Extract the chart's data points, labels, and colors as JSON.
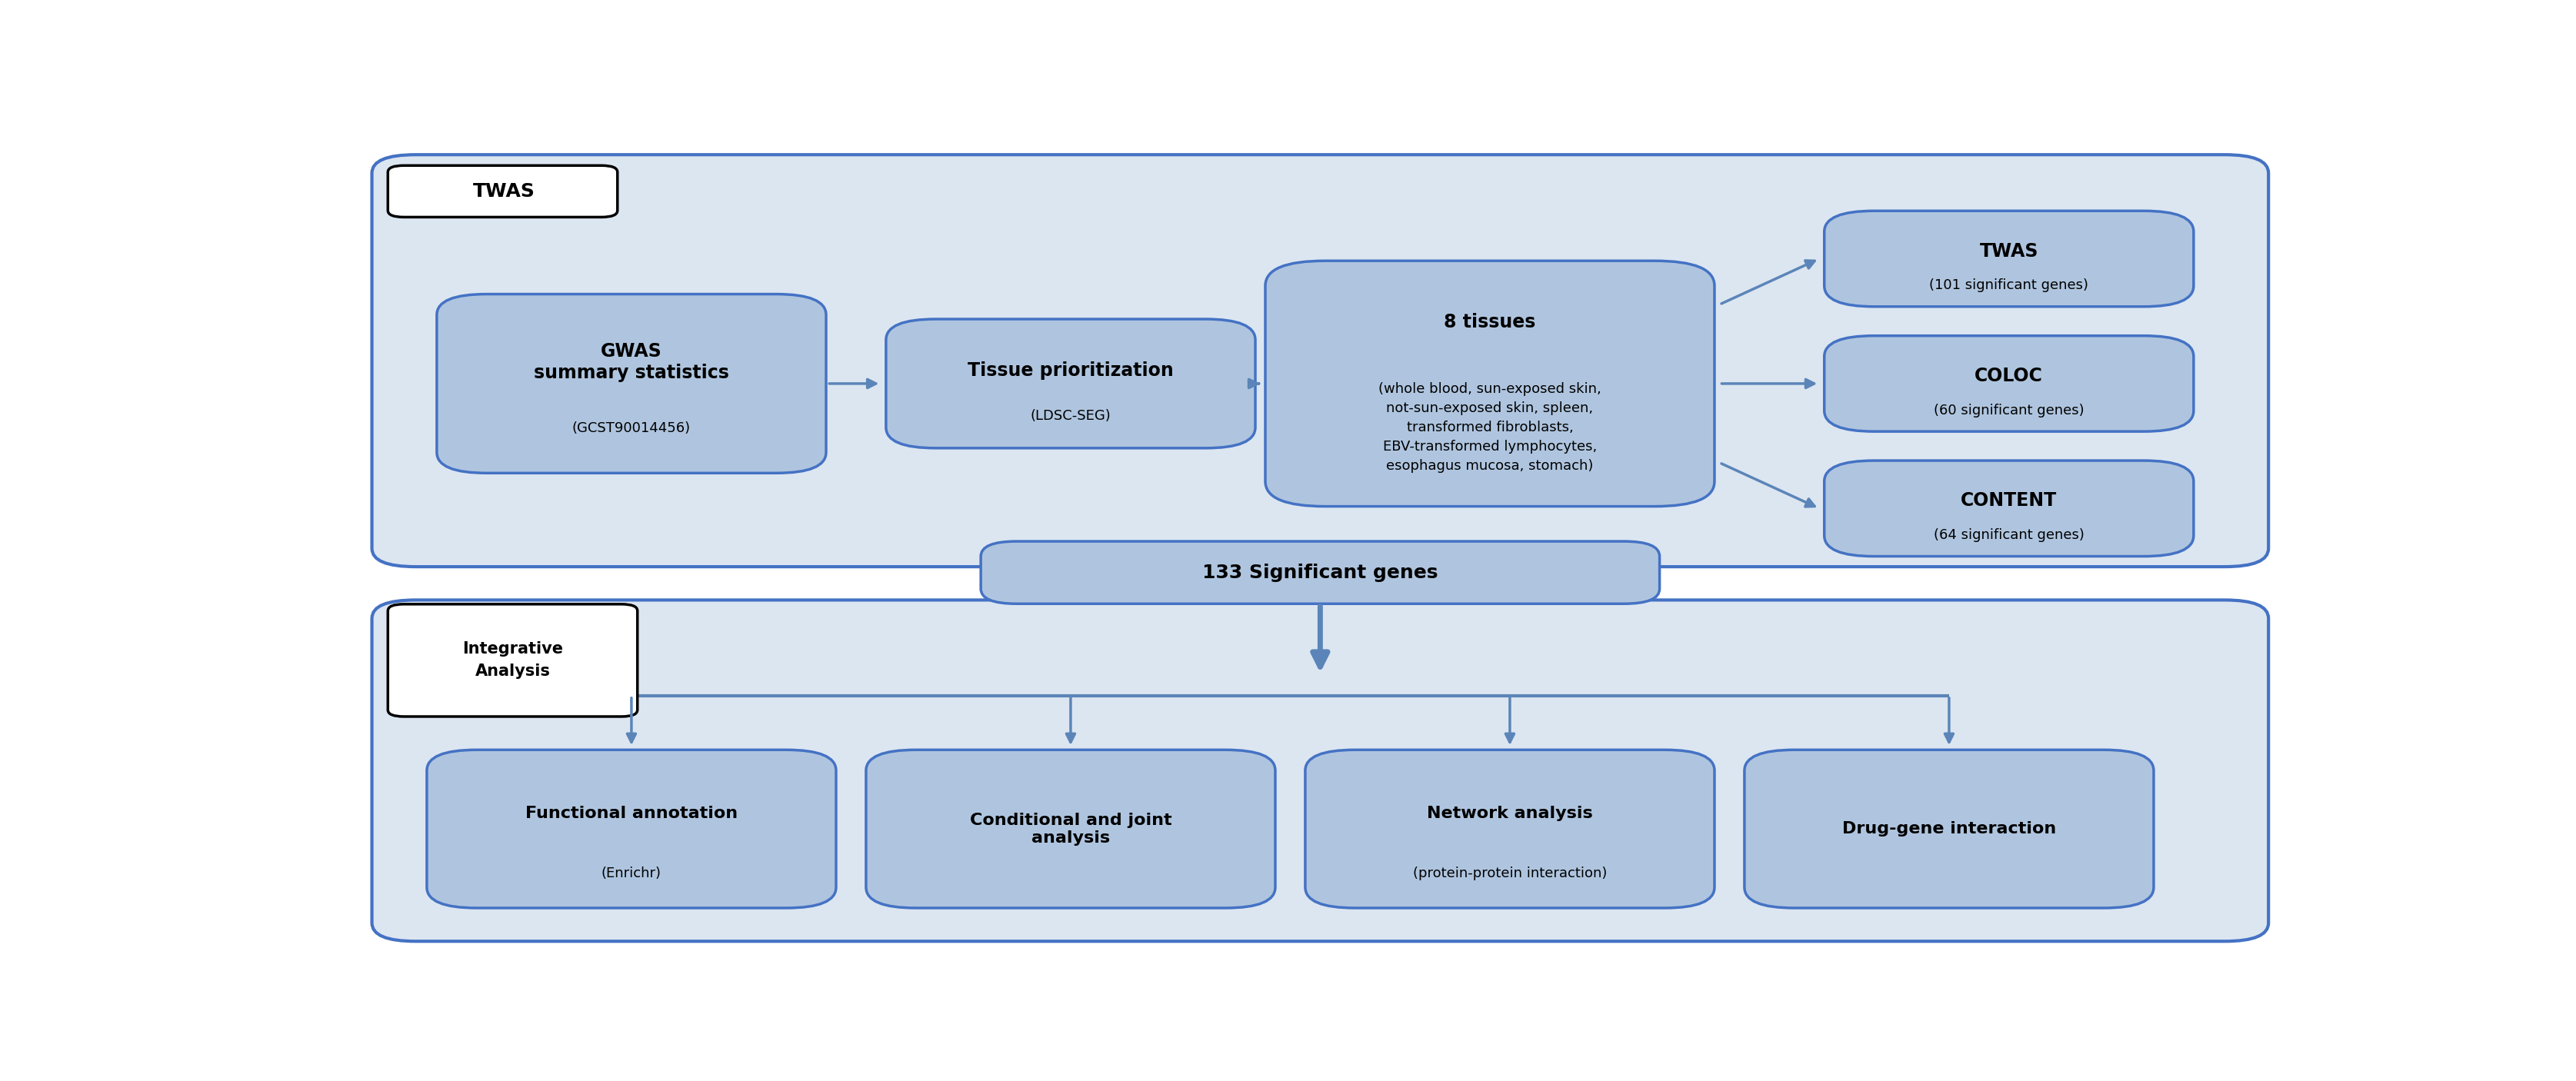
{
  "fig_width": 33.49,
  "fig_height": 14.06,
  "bg_color": "#ffffff",
  "box_fill": "#afc5df",
  "box_edge": "#4472c4",
  "outer_box_fill": "#dce6f1",
  "outer_box_edge": "#4472c4",
  "arrow_color": "#5b85b8",
  "label_box_fill": "#ffffff",
  "label_box_edge": "#000000",
  "twas_label": "TWAS",
  "integrative_label": "Integrative\nAnalysis",
  "gwas_title": "GWAS\nsummary statistics",
  "gwas_sub": "(GCST90014456)",
  "tissue_prio_title": "Tissue prioritization",
  "tissue_prio_sub": "(LDSC-SEG)",
  "tissues_title": "8 tissues",
  "tissues_sub": "(whole blood, sun-exposed skin,\nnot-sun-exposed skin, spleen,\ntransformed fibroblasts,\nEBV-transformed lymphocytes,\nesophagus mucosa, stomach)",
  "twas_result_title": "TWAS",
  "twas_result_sub": "(101 significant genes)",
  "coloc_title": "COLOC",
  "coloc_sub": "(60 significant genes)",
  "content_title": "CONTENT",
  "content_sub": "(64 significant genes)",
  "sig_genes_title": "133 Significant genes",
  "func_ann_title": "Functional annotation",
  "func_ann_sub": "(Enrichr)",
  "cond_joint_title": "Conditional and joint\nanalysis",
  "network_title": "Network analysis",
  "network_sub": "(protein-protein interaction)",
  "drug_gene_title": "Drug-gene interaction"
}
